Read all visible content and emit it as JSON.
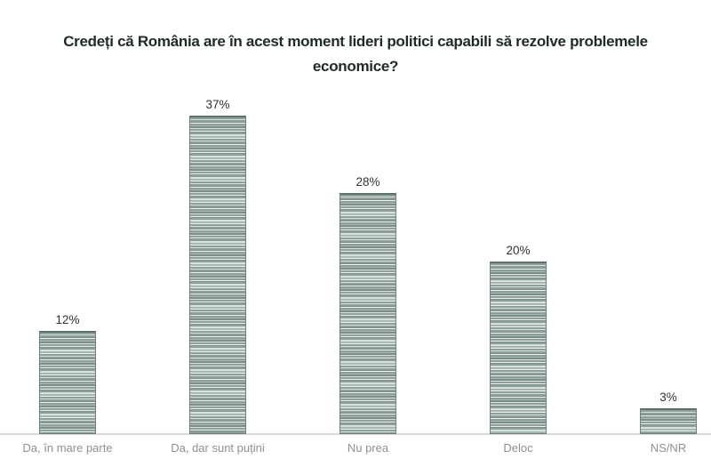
{
  "page": {
    "background": "#ffffff"
  },
  "title": {
    "text": "Credeți că România are în acest moment lideri politici capabili să rezolve problemele economice?",
    "line1": "Credeți că România are în acest moment lideri politici capabili să rezolve problemele",
    "line2": "economice?",
    "color": "#1e2b27"
  },
  "chart_data": {
    "type": "bar",
    "title": "Credeți că România are în acest moment lideri politici capabili să rezolve problemele economice?",
    "categories": [
      "Da, în mare parte",
      "Da, dar sunt puțini",
      "Nu prea",
      "Deloc",
      "NS/NR"
    ],
    "values": [
      12,
      37,
      28,
      20,
      3
    ],
    "value_labels": [
      "12%",
      "37%",
      "28%",
      "20%",
      "3%"
    ],
    "xlabel": "",
    "ylabel": "",
    "ylim": [
      0,
      40
    ],
    "grid": false,
    "legend": false,
    "y_axis_visible": false,
    "baseline_visible": true,
    "colors": {
      "bar_fill": "#8da09a",
      "bar_stripe_light": "#d8e0dd",
      "bar_stripe_lighter": "#edf0ef",
      "bar_stripe_mid": "#a9b7b2",
      "bar_stripe_dark": "#7b8e88",
      "bar_border": "#6e817b",
      "bar_border_top": "#5d706a",
      "value_label": "#2f3335",
      "category_label": "#8c9292",
      "axis_line": "#d9d9d9",
      "title": "#1e2b27",
      "background": "#ffffff"
    }
  }
}
